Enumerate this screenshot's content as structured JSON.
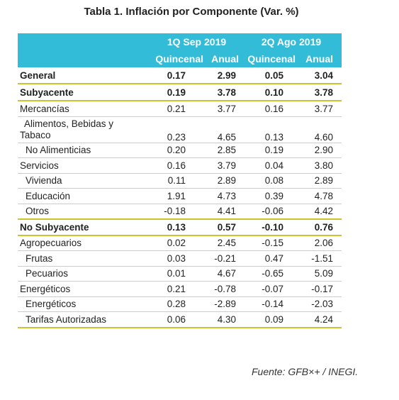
{
  "title": "Tabla 1. Inflación por Componente (Var. %)",
  "table": {
    "periods": [
      "1Q Sep 2019",
      "2Q Ago 2019"
    ],
    "columns": [
      "Quincenal",
      "Anual",
      "Quincenal",
      "Anual"
    ],
    "rows": [
      [
        "General",
        "0.17",
        "2.99",
        "0.05",
        "3.04"
      ],
      [
        "Subyacente",
        "0.19",
        "3.78",
        "0.10",
        "3.78"
      ],
      [
        "Mercancías",
        "0.21",
        "3.77",
        "0.16",
        "3.77"
      ],
      [
        "Alimentos, Bebidas y Tabaco",
        "0.23",
        "4.65",
        "0.13",
        "4.60"
      ],
      [
        "No Alimenticias",
        "0.20",
        "2.85",
        "0.19",
        "2.90"
      ],
      [
        "Servicios",
        "0.16",
        "3.79",
        "0.04",
        "3.80"
      ],
      [
        "Vivienda",
        "0.11",
        "2.89",
        "0.08",
        "2.89"
      ],
      [
        "Educación",
        "1.91",
        "4.73",
        "0.39",
        "4.78"
      ],
      [
        "Otros",
        "-0.18",
        "4.41",
        "-0.06",
        "4.42"
      ],
      [
        "No Subyacente",
        "0.13",
        "0.57",
        "-0.10",
        "0.76"
      ],
      [
        "Agropecuarios",
        "0.02",
        "2.45",
        "-0.15",
        "2.06"
      ],
      [
        "Frutas",
        "0.03",
        "-0.21",
        "0.47",
        "-1.51"
      ],
      [
        "Pecuarios",
        "0.01",
        "4.67",
        "-0.65",
        "5.09"
      ],
      [
        "Energéticos",
        "0.21",
        "-0.78",
        "-0.07",
        "-0.17"
      ],
      [
        "Energéticos",
        "0.28",
        "-2.89",
        "-0.14",
        "-2.03"
      ],
      [
        "Tarifas Autorizadas",
        "0.06",
        "4.30",
        "0.09",
        "4.24"
      ]
    ]
  },
  "source": "Fuente: GFB×+ /  INEGI."
}
